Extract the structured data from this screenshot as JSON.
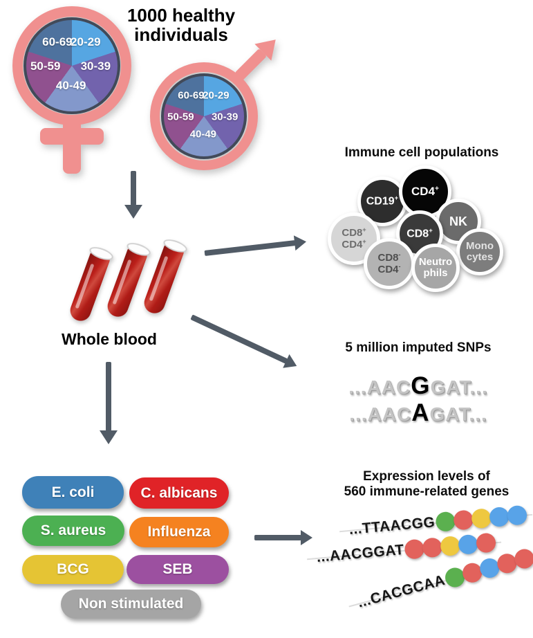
{
  "header": {
    "title": "1000 healthy individuals"
  },
  "demographics": {
    "female_icon": "female-gender-symbol",
    "male_icon": "male-gender-symbol",
    "symbol_color": "#f0908f",
    "pie_border_color": "#424a59",
    "age_groups": [
      {
        "label": "20-29",
        "color": "#56a6e2"
      },
      {
        "label": "30-39",
        "color": "#7263ad"
      },
      {
        "label": "40-49",
        "color": "#8398cb"
      },
      {
        "label": "50-59",
        "color": "#90518f"
      },
      {
        "label": "60-69",
        "color": "#4e729e"
      }
    ]
  },
  "arrows": {
    "color": "#515b66"
  },
  "blood": {
    "label": "Whole blood",
    "tube_icon": "blood-tube-icon",
    "tube_count": 3,
    "blood_color": "#b91e1a"
  },
  "immune_cells": {
    "title": "Immune cell populations",
    "cells": [
      {
        "name": "CD19+",
        "bg": "#2d2d2d",
        "fg": "#ffffff",
        "lines": [
          {
            "base": "CD19",
            "sup": "+"
          }
        ]
      },
      {
        "name": "CD4+",
        "bg": "#060606",
        "fg": "#ffffff",
        "lines": [
          {
            "base": "CD4",
            "sup": "+"
          }
        ]
      },
      {
        "name": "NK",
        "bg": "#6b6b6b",
        "fg": "#ffffff",
        "lines": [
          {
            "base": "NK",
            "sup": ""
          }
        ]
      },
      {
        "name": "CD8+",
        "bg": "#3a3a3a",
        "fg": "#ffffff",
        "lines": [
          {
            "base": "CD8",
            "sup": "+"
          }
        ]
      },
      {
        "name": "CD8+CD4+",
        "bg": "#d6d6d6",
        "fg": "#6d6d6d",
        "lines": [
          {
            "base": "CD8",
            "sup": "+"
          },
          {
            "base": "CD4",
            "sup": "+"
          }
        ]
      },
      {
        "name": "Monocytes",
        "bg": "#7d7d7d",
        "fg": "#e3e3e3",
        "lines": [
          {
            "base": "Mono",
            "sup": ""
          },
          {
            "base": "cytes",
            "sup": ""
          }
        ]
      },
      {
        "name": "CD8-CD4-",
        "bg": "#b3b3b3",
        "fg": "#4f4f4f",
        "lines": [
          {
            "base": "CD8",
            "sup": "-"
          },
          {
            "base": "CD4",
            "sup": "-"
          }
        ]
      },
      {
        "name": "Neutrophils",
        "bg": "#a6a6a6",
        "fg": "#ffffff",
        "lines": [
          {
            "base": "Neutro",
            "sup": ""
          },
          {
            "base": "phils",
            "sup": ""
          }
        ]
      }
    ]
  },
  "snps": {
    "title": "5 million imputed SNPs",
    "sequences": [
      {
        "prefix": "...AAC",
        "variant": "G",
        "suffix": "GAT..."
      },
      {
        "prefix": "...AAC",
        "variant": "A",
        "suffix": "GAT..."
      }
    ]
  },
  "stimuli": {
    "items": [
      {
        "label": "E. coli",
        "color": "#3f81b8"
      },
      {
        "label": "C. albicans",
        "color": "#e02327"
      },
      {
        "label": "S. aureus",
        "color": "#4cb052"
      },
      {
        "label": "Influenza",
        "color": "#f58220"
      },
      {
        "label": "BCG",
        "color": "#e5c434"
      },
      {
        "label": "SEB",
        "color": "#9c50a0"
      },
      {
        "label": "Non stimulated",
        "color": "#a5a5a5"
      }
    ]
  },
  "expression": {
    "title_line1": "Expression levels of",
    "title_line2": "560 immune-related genes",
    "dot_colors": {
      "green": "#5bb04f",
      "red": "#e2625c",
      "yellow": "#eec840",
      "blue": "#58a3e8"
    },
    "rows": [
      {
        "sequence": "...TTAACGG",
        "dots": [
          "green",
          "red",
          "yellow",
          "blue",
          "blue"
        ]
      },
      {
        "sequence": "...AACGGAT",
        "dots": [
          "red",
          "red",
          "yellow",
          "blue",
          "red"
        ]
      },
      {
        "sequence": "...CACGCAA",
        "dots": [
          "green",
          "red",
          "blue",
          "red",
          "red"
        ]
      }
    ]
  }
}
